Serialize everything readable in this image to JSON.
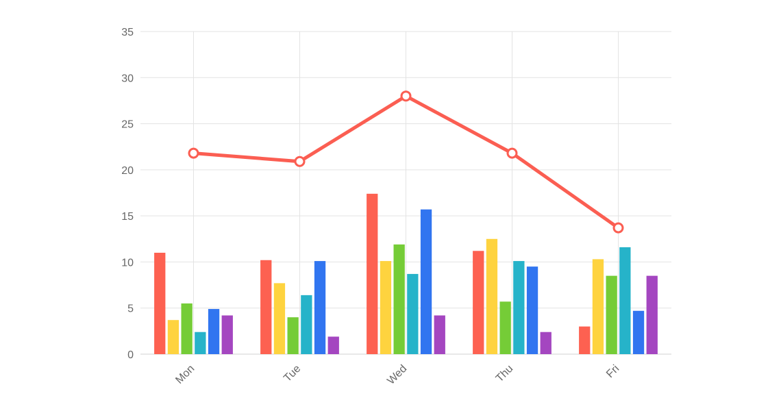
{
  "chart_data": {
    "type": "bar",
    "categories": [
      "Mon",
      "Tue",
      "Wed",
      "Thu",
      "Fri"
    ],
    "series": [
      {
        "type": "bar",
        "color": "#fd6151",
        "values": [
          11.0,
          10.2,
          17.4,
          11.2,
          3.0
        ]
      },
      {
        "type": "bar",
        "color": "#fed33f",
        "values": [
          3.7,
          7.7,
          10.1,
          12.5,
          10.3
        ]
      },
      {
        "type": "bar",
        "color": "#75cc37",
        "values": [
          5.5,
          4.0,
          11.9,
          5.7,
          8.5
        ]
      },
      {
        "type": "bar",
        "color": "#26b3c9",
        "values": [
          2.4,
          6.4,
          8.7,
          10.1,
          11.6
        ]
      },
      {
        "type": "bar",
        "color": "#3175f0",
        "values": [
          4.9,
          10.1,
          15.7,
          9.5,
          4.7
        ]
      },
      {
        "type": "bar",
        "color": "#a446c0",
        "values": [
          4.2,
          1.9,
          4.2,
          2.4,
          8.5
        ]
      },
      {
        "type": "line",
        "color": "#fb5e52",
        "values": [
          21.8,
          20.9,
          28.0,
          21.8,
          13.7
        ]
      }
    ],
    "ylim": [
      0,
      35
    ],
    "yticks": [
      "0",
      "5",
      "10",
      "15",
      "20",
      "25",
      "30",
      "35"
    ],
    "grid": true,
    "legend": "none"
  }
}
